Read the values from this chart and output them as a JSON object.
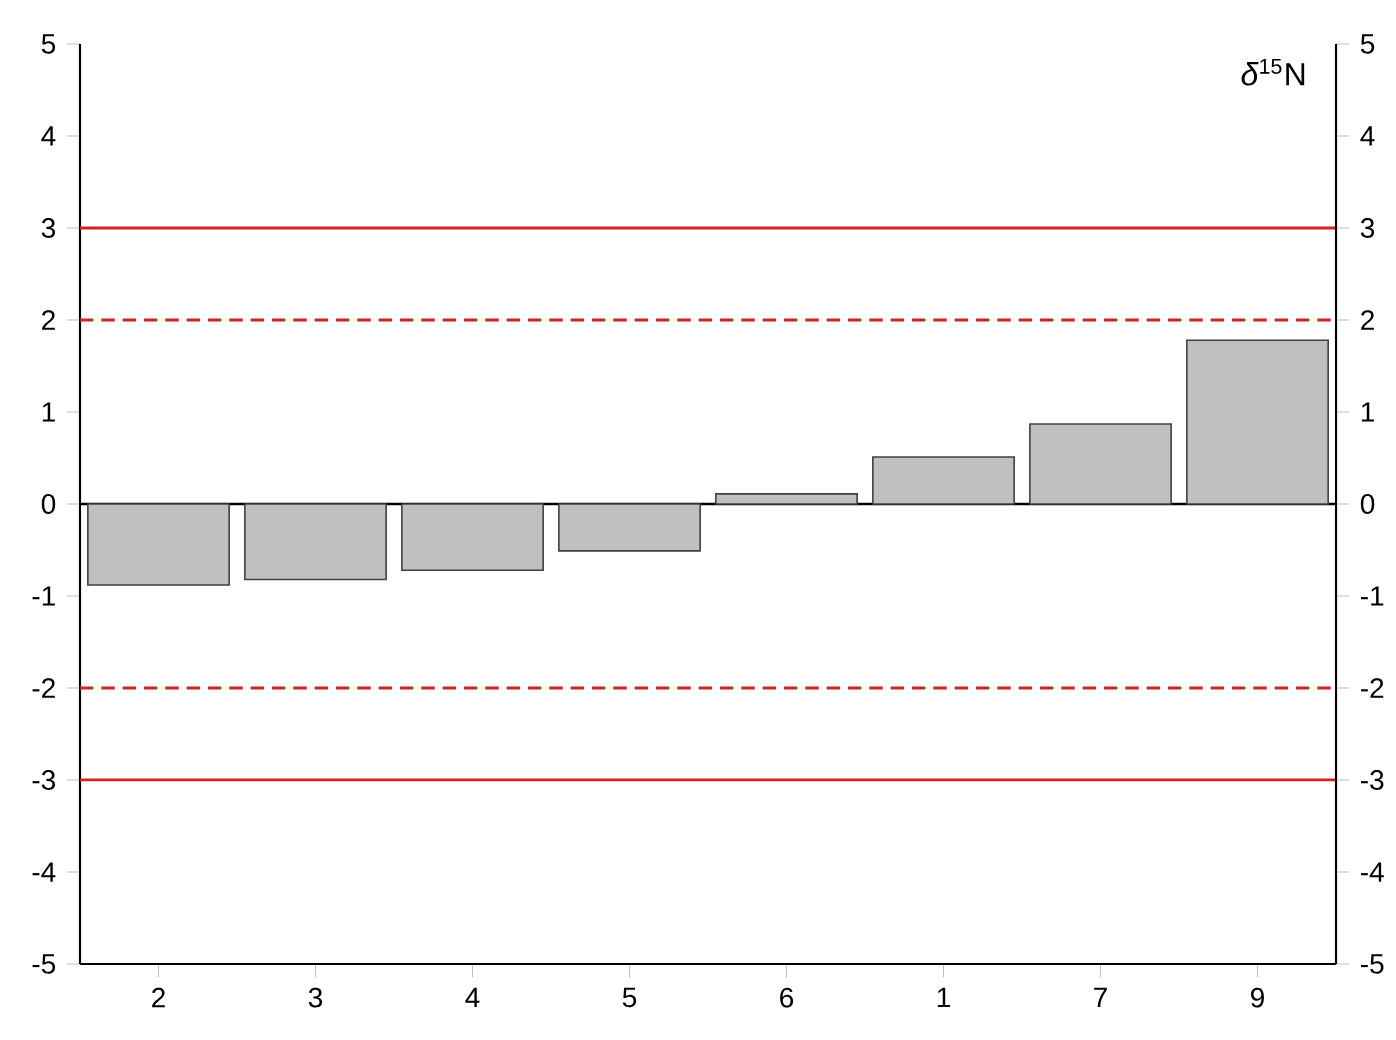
{
  "chart_data": {
    "type": "bar",
    "categories": [
      "2",
      "3",
      "4",
      "5",
      "6",
      "1",
      "7",
      "9"
    ],
    "values": [
      -0.88,
      -0.82,
      -0.72,
      -0.51,
      0.11,
      0.51,
      0.87,
      1.78
    ],
    "color": "#c0c0c0",
    "ylim": [
      -5,
      5
    ],
    "yticks": [
      -5,
      -4,
      -3,
      -2,
      -1,
      0,
      1,
      2,
      3,
      4,
      5
    ],
    "y2lim": [
      -5,
      5
    ],
    "y2ticks": [
      -5,
      -4,
      -3,
      -2,
      -1,
      0,
      1,
      2,
      3,
      4,
      5
    ],
    "ref_lines": [
      {
        "axis": "y",
        "value": 3,
        "color": "#d62020",
        "line_style": "solid"
      },
      {
        "axis": "y",
        "value": 2,
        "color": "#d62020",
        "line_style": "dashed"
      },
      {
        "axis": "y",
        "value": -2,
        "color": "#d62020",
        "line_style": "dashed"
      },
      {
        "axis": "y",
        "value": -3,
        "color": "#d62020",
        "line_style": "solid"
      }
    ],
    "annotations": [
      "*δ*$^{15}$N"
    ]
  }
}
